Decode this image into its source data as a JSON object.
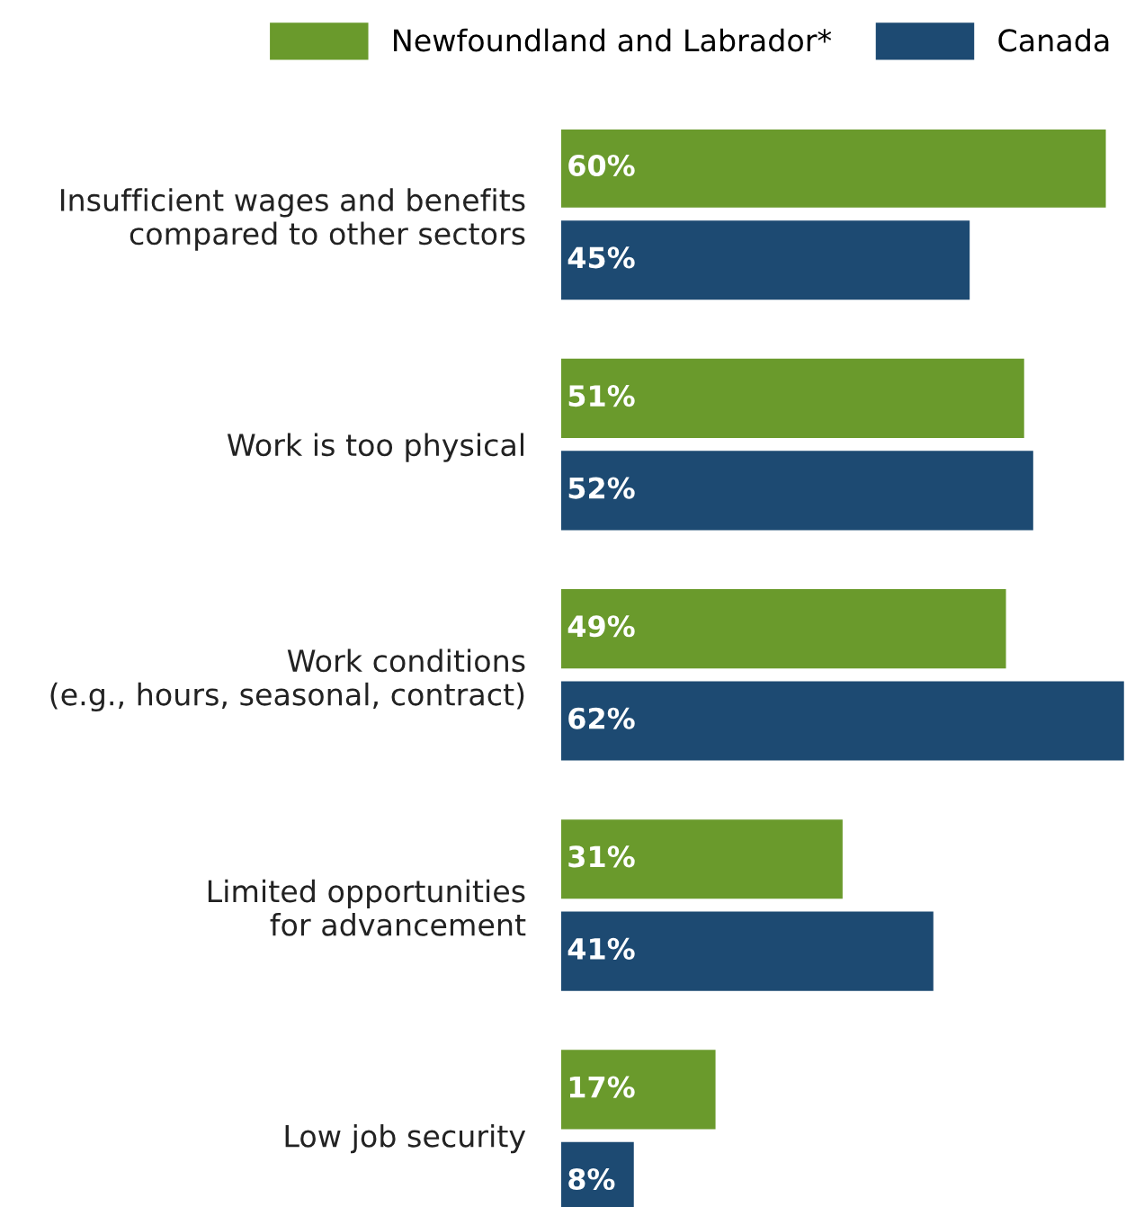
{
  "chart_data": {
    "type": "bar",
    "orientation": "horizontal",
    "legend": "top",
    "grid": false,
    "categories": [
      "Insufficient wages and benefits\ncompared to other sectors",
      "Work is too physical",
      "Work conditions\n(e.g., hours, seasonal, contract)",
      "Limited opportunities\nfor advancement",
      "Low job security"
    ],
    "series": [
      {
        "name": "Newfoundland and Labrador*",
        "color": "#6a9a2c",
        "values": [
          60,
          51,
          49,
          31,
          17
        ],
        "value_labels": [
          "60%",
          "51%",
          "49%",
          "31%",
          "17%"
        ]
      },
      {
        "name": "Canada",
        "color": "#1d4a72",
        "values": [
          45,
          52,
          62,
          41,
          8
        ],
        "value_labels": [
          "45%",
          "52%",
          "62%",
          "41%",
          "8%"
        ]
      }
    ]
  }
}
